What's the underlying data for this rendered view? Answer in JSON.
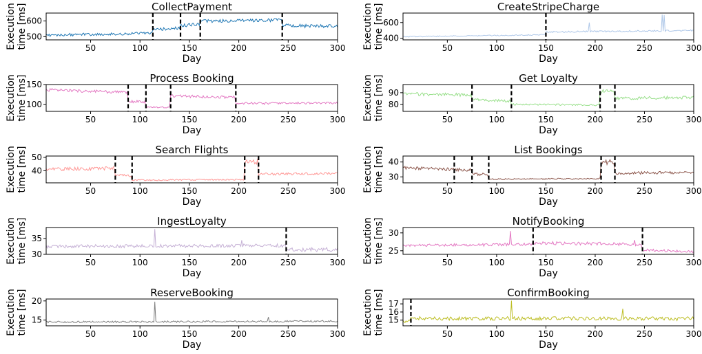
{
  "chart_data": [
    {
      "type": "line",
      "title": "CollectPayment",
      "xlabel": "Day",
      "ylabel": [
        "Execution",
        "time [ms]"
      ],
      "xlim": [
        5,
        300
      ],
      "ylim": [
        480,
        650
      ],
      "xticks": [
        50,
        100,
        150,
        200,
        250,
        300
      ],
      "yticks": [
        500,
        600
      ],
      "color": "#1f77b4",
      "change_points": [
        113,
        141,
        161,
        244
      ],
      "segments": [
        {
          "x0": 5,
          "x1": 113,
          "y0": 510,
          "y1": 522,
          "noise": 10
        },
        {
          "x0": 113,
          "x1": 141,
          "y0": 545,
          "y1": 555,
          "noise": 10
        },
        {
          "x0": 141,
          "x1": 161,
          "y0": 570,
          "y1": 580,
          "noise": 11
        },
        {
          "x0": 161,
          "x1": 244,
          "y0": 598,
          "y1": 605,
          "noise": 12
        },
        {
          "x0": 244,
          "x1": 300,
          "y0": 572,
          "y1": 565,
          "noise": 13
        }
      ],
      "spikes": []
    },
    {
      "type": "line",
      "title": "CreateStripeCharge",
      "xlabel": "Day",
      "ylabel": [
        "Execution",
        "time [ms]"
      ],
      "xlim": [
        5,
        300
      ],
      "ylim": [
        380,
        720
      ],
      "xticks": [
        50,
        100,
        150,
        200,
        250,
        300
      ],
      "yticks": [
        400,
        600
      ],
      "color": "#aec7e8",
      "change_points": [
        150
      ],
      "segments": [
        {
          "x0": 5,
          "x1": 150,
          "y0": 420,
          "y1": 445,
          "noise": 7
        },
        {
          "x0": 150,
          "x1": 300,
          "y0": 480,
          "y1": 500,
          "noise": 10
        }
      ],
      "spikes": [
        {
          "x": 194,
          "y": 600
        },
        {
          "x": 268,
          "y": 700
        },
        {
          "x": 270,
          "y": 695
        }
      ]
    },
    {
      "type": "line",
      "title": "Process Booking",
      "xlabel": "Day",
      "ylabel": [
        "Execution",
        "time [ms]"
      ],
      "xlim": [
        5,
        300
      ],
      "ylim": [
        83,
        150
      ],
      "xticks": [
        50,
        100,
        150,
        200,
        250,
        300
      ],
      "yticks": [
        100,
        150
      ],
      "color": "#e377c2",
      "change_points": [
        88,
        106,
        131,
        197
      ],
      "segments": [
        {
          "x0": 5,
          "x1": 88,
          "y0": 137,
          "y1": 130,
          "noise": 4
        },
        {
          "x0": 88,
          "x1": 106,
          "y0": 108,
          "y1": 106,
          "noise": 4
        },
        {
          "x0": 106,
          "x1": 131,
          "y0": 94,
          "y1": 93,
          "noise": 2
        },
        {
          "x0": 131,
          "x1": 197,
          "y0": 122,
          "y1": 118,
          "noise": 4
        },
        {
          "x0": 197,
          "x1": 300,
          "y0": 103,
          "y1": 104,
          "noise": 3
        }
      ],
      "spikes": []
    },
    {
      "type": "line",
      "title": "Get Loyalty",
      "xlabel": "Day",
      "ylabel": [
        "Execution",
        "time [ms]"
      ],
      "xlim": [
        5,
        300
      ],
      "ylim": [
        74,
        97
      ],
      "xticks": [
        50,
        100,
        150,
        200,
        250,
        300
      ],
      "yticks": [
        80,
        90
      ],
      "color": "#98df8a",
      "change_points": [
        75,
        115,
        205,
        220
      ],
      "segments": [
        {
          "x0": 5,
          "x1": 75,
          "y0": 89,
          "y1": 88,
          "noise": 1.5
        },
        {
          "x0": 75,
          "x1": 115,
          "y0": 84,
          "y1": 83,
          "noise": 1.3
        },
        {
          "x0": 115,
          "x1": 205,
          "y0": 80,
          "y1": 79.5,
          "noise": 0.8
        },
        {
          "x0": 205,
          "x1": 220,
          "y0": 91,
          "y1": 92,
          "noise": 2
        },
        {
          "x0": 220,
          "x1": 300,
          "y0": 85,
          "y1": 86,
          "noise": 1.5
        }
      ],
      "spikes": []
    },
    {
      "type": "line",
      "title": "Search Flights",
      "xlabel": "Day",
      "ylabel": [
        "Execution",
        "time [ms]"
      ],
      "xlim": [
        5,
        300
      ],
      "ylim": [
        31,
        51
      ],
      "xticks": [
        50,
        100,
        150,
        200,
        250,
        300
      ],
      "yticks": [
        40,
        50
      ],
      "color": "#ff9896",
      "change_points": [
        75,
        92,
        206,
        220
      ],
      "segments": [
        {
          "x0": 5,
          "x1": 75,
          "y0": 41,
          "y1": 42,
          "noise": 1.5
        },
        {
          "x0": 75,
          "x1": 92,
          "y0": 37,
          "y1": 36,
          "noise": 1
        },
        {
          "x0": 92,
          "x1": 206,
          "y0": 33,
          "y1": 33.5,
          "noise": 0.6
        },
        {
          "x0": 206,
          "x1": 220,
          "y0": 46,
          "y1": 47,
          "noise": 2.5
        },
        {
          "x0": 220,
          "x1": 300,
          "y0": 37.5,
          "y1": 38,
          "noise": 1
        }
      ],
      "spikes": []
    },
    {
      "type": "line",
      "title": "List Bookings",
      "xlabel": "Day",
      "ylabel": [
        "Execution",
        "time [ms]"
      ],
      "xlim": [
        5,
        300
      ],
      "ylim": [
        26,
        44
      ],
      "xticks": [
        50,
        100,
        150,
        200,
        250,
        300
      ],
      "yticks": [
        30,
        40
      ],
      "color": "#8c564b",
      "change_points": [
        57,
        75,
        92,
        206,
        220
      ],
      "segments": [
        {
          "x0": 5,
          "x1": 57,
          "y0": 36,
          "y1": 35,
          "noise": 1.2
        },
        {
          "x0": 57,
          "x1": 75,
          "y0": 35,
          "y1": 34.5,
          "noise": 1.2
        },
        {
          "x0": 75,
          "x1": 92,
          "y0": 32,
          "y1": 31.5,
          "noise": 1
        },
        {
          "x0": 92,
          "x1": 206,
          "y0": 28.5,
          "y1": 28.8,
          "noise": 0.5
        },
        {
          "x0": 206,
          "x1": 220,
          "y0": 39,
          "y1": 40,
          "noise": 2.5
        },
        {
          "x0": 220,
          "x1": 300,
          "y0": 32.5,
          "y1": 33,
          "noise": 1
        }
      ],
      "spikes": []
    },
    {
      "type": "line",
      "title": "IngestLoyalty",
      "xlabel": "Day",
      "ylabel": [
        "Execution",
        "time [ms]"
      ],
      "xlim": [
        5,
        300
      ],
      "ylim": [
        30,
        38.5
      ],
      "xticks": [
        50,
        100,
        150,
        200,
        250,
        300
      ],
      "yticks": [
        30,
        35
      ],
      "color": "#c5b0d5",
      "change_points": [
        248
      ],
      "segments": [
        {
          "x0": 5,
          "x1": 248,
          "y0": 32.5,
          "y1": 32.8,
          "noise": 0.6
        },
        {
          "x0": 248,
          "x1": 300,
          "y0": 31.5,
          "y1": 31.5,
          "noise": 0.7
        }
      ],
      "spikes": [
        {
          "x": 115,
          "y": 38
        },
        {
          "x": 203,
          "y": 34.5
        }
      ]
    },
    {
      "type": "line",
      "title": "NotifyBooking",
      "xlabel": "Day",
      "ylabel": [
        "Execution",
        "time [ms]"
      ],
      "xlim": [
        5,
        300
      ],
      "ylim": [
        24,
        31.5
      ],
      "xticks": [
        50,
        100,
        150,
        200,
        250,
        300
      ],
      "yticks": [
        25,
        30
      ],
      "color": "#e377c2",
      "change_points": [
        137,
        248
      ],
      "segments": [
        {
          "x0": 5,
          "x1": 137,
          "y0": 26.5,
          "y1": 26.8,
          "noise": 0.4
        },
        {
          "x0": 137,
          "x1": 248,
          "y0": 27.2,
          "y1": 26.8,
          "noise": 0.5
        },
        {
          "x0": 248,
          "x1": 300,
          "y0": 25.2,
          "y1": 24.8,
          "noise": 0.4
        }
      ],
      "spikes": [
        {
          "x": 114,
          "y": 30.5
        },
        {
          "x": 240,
          "y": 28
        }
      ]
    },
    {
      "type": "line",
      "title": "ReserveBooking",
      "xlabel": "Day",
      "ylabel": [
        "Execution",
        "time [ms]"
      ],
      "xlim": [
        5,
        300
      ],
      "ylim": [
        13.5,
        20.5
      ],
      "xticks": [
        50,
        100,
        150,
        200,
        250,
        300
      ],
      "yticks": [
        15,
        20
      ],
      "color": "#7f7f7f",
      "change_points": [],
      "segments": [
        {
          "x0": 5,
          "x1": 300,
          "y0": 14.5,
          "y1": 14.7,
          "noise": 0.25
        }
      ],
      "spikes": [
        {
          "x": 115,
          "y": 19.8
        },
        {
          "x": 230,
          "y": 15.8
        }
      ]
    },
    {
      "type": "line",
      "title": "ConfirmBooking",
      "xlabel": "Day",
      "ylabel": [
        "Execution",
        "time [ms]"
      ],
      "xlim": [
        5,
        300
      ],
      "ylim": [
        14.3,
        17.6
      ],
      "xticks": [
        50,
        100,
        150,
        200,
        250,
        300
      ],
      "yticks": [
        15,
        16,
        17
      ],
      "color": "#bcbd22",
      "change_points": [
        13
      ],
      "segments": [
        {
          "x0": 5,
          "x1": 13,
          "y0": 14.8,
          "y1": 15.0,
          "noise": 0.2
        },
        {
          "x0": 13,
          "x1": 300,
          "y0": 15.2,
          "y1": 15.2,
          "noise": 0.25
        }
      ],
      "spikes": [
        {
          "x": 115,
          "y": 17.4
        },
        {
          "x": 228,
          "y": 16.4
        }
      ]
    }
  ]
}
